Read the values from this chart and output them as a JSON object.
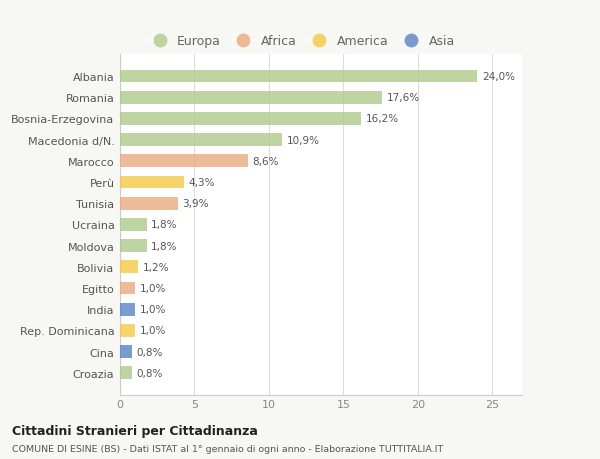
{
  "categories": [
    "Albania",
    "Romania",
    "Bosnia-Erzegovina",
    "Macedonia d/N.",
    "Marocco",
    "Perù",
    "Tunisia",
    "Ucraina",
    "Moldova",
    "Bolivia",
    "Egitto",
    "India",
    "Rep. Dominicana",
    "Cina",
    "Croazia"
  ],
  "values": [
    24.0,
    17.6,
    16.2,
    10.9,
    8.6,
    4.3,
    3.9,
    1.8,
    1.8,
    1.2,
    1.0,
    1.0,
    1.0,
    0.8,
    0.8
  ],
  "labels": [
    "24,0%",
    "17,6%",
    "16,2%",
    "10,9%",
    "8,6%",
    "4,3%",
    "3,9%",
    "1,8%",
    "1,8%",
    "1,2%",
    "1,0%",
    "1,0%",
    "1,0%",
    "0,8%",
    "0,8%"
  ],
  "continents": [
    "Europa",
    "Europa",
    "Europa",
    "Europa",
    "Africa",
    "America",
    "Africa",
    "Europa",
    "Europa",
    "America",
    "Africa",
    "Asia",
    "America",
    "Asia",
    "Europa"
  ],
  "continent_colors": {
    "Europa": "#adc98a",
    "Africa": "#e8a87c",
    "America": "#f5c842",
    "Asia": "#5580c4"
  },
  "legend_items": [
    "Europa",
    "Africa",
    "America",
    "Asia"
  ],
  "background_color": "#f7f7f3",
  "plot_bg_color": "#ffffff",
  "xlim": [
    0,
    27
  ],
  "xticks": [
    0,
    5,
    10,
    15,
    20,
    25
  ],
  "title_main": "Cittadini Stranieri per Cittadinanza",
  "title_sub": "COMUNE DI ESINE (BS) - Dati ISTAT al 1° gennaio di ogni anno - Elaborazione TUTTITALIA.IT",
  "bar_height": 0.6,
  "bar_alpha": 0.78
}
